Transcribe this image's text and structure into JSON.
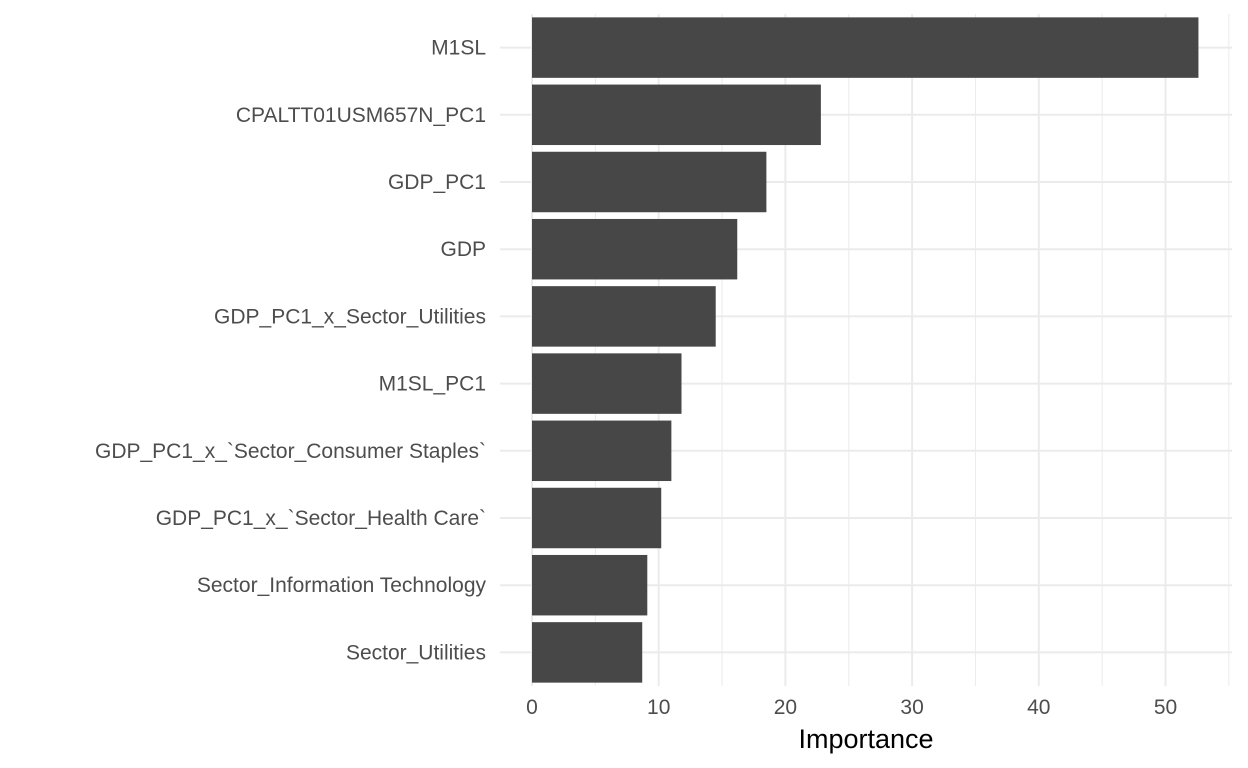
{
  "chart_data": {
    "type": "bar",
    "orientation": "horizontal",
    "title": "",
    "xlabel": "Importance",
    "ylabel": "",
    "xlim": [
      0,
      55
    ],
    "x_ticks": [
      0,
      10,
      20,
      30,
      40,
      50
    ],
    "grid": true,
    "legend": "none",
    "colors": {
      "bar": "#474747",
      "grid": "#ebebeb",
      "tick_text": "#4d4d4d",
      "axis_title": "#000000"
    },
    "categories": [
      "M1SL",
      "CPALTT01USM657N_PC1",
      "GDP_PC1",
      "GDP",
      "GDP_PC1_x_Sector_Utilities",
      "M1SL_PC1",
      "GDP_PC1_x_`Sector_Consumer Staples`",
      "GDP_PC1_x_`Sector_Health Care`",
      "Sector_Information Technology",
      "Sector_Utilities"
    ],
    "values": [
      52.6,
      22.8,
      18.5,
      16.2,
      14.5,
      11.8,
      11.0,
      10.2,
      9.1,
      8.7
    ]
  }
}
